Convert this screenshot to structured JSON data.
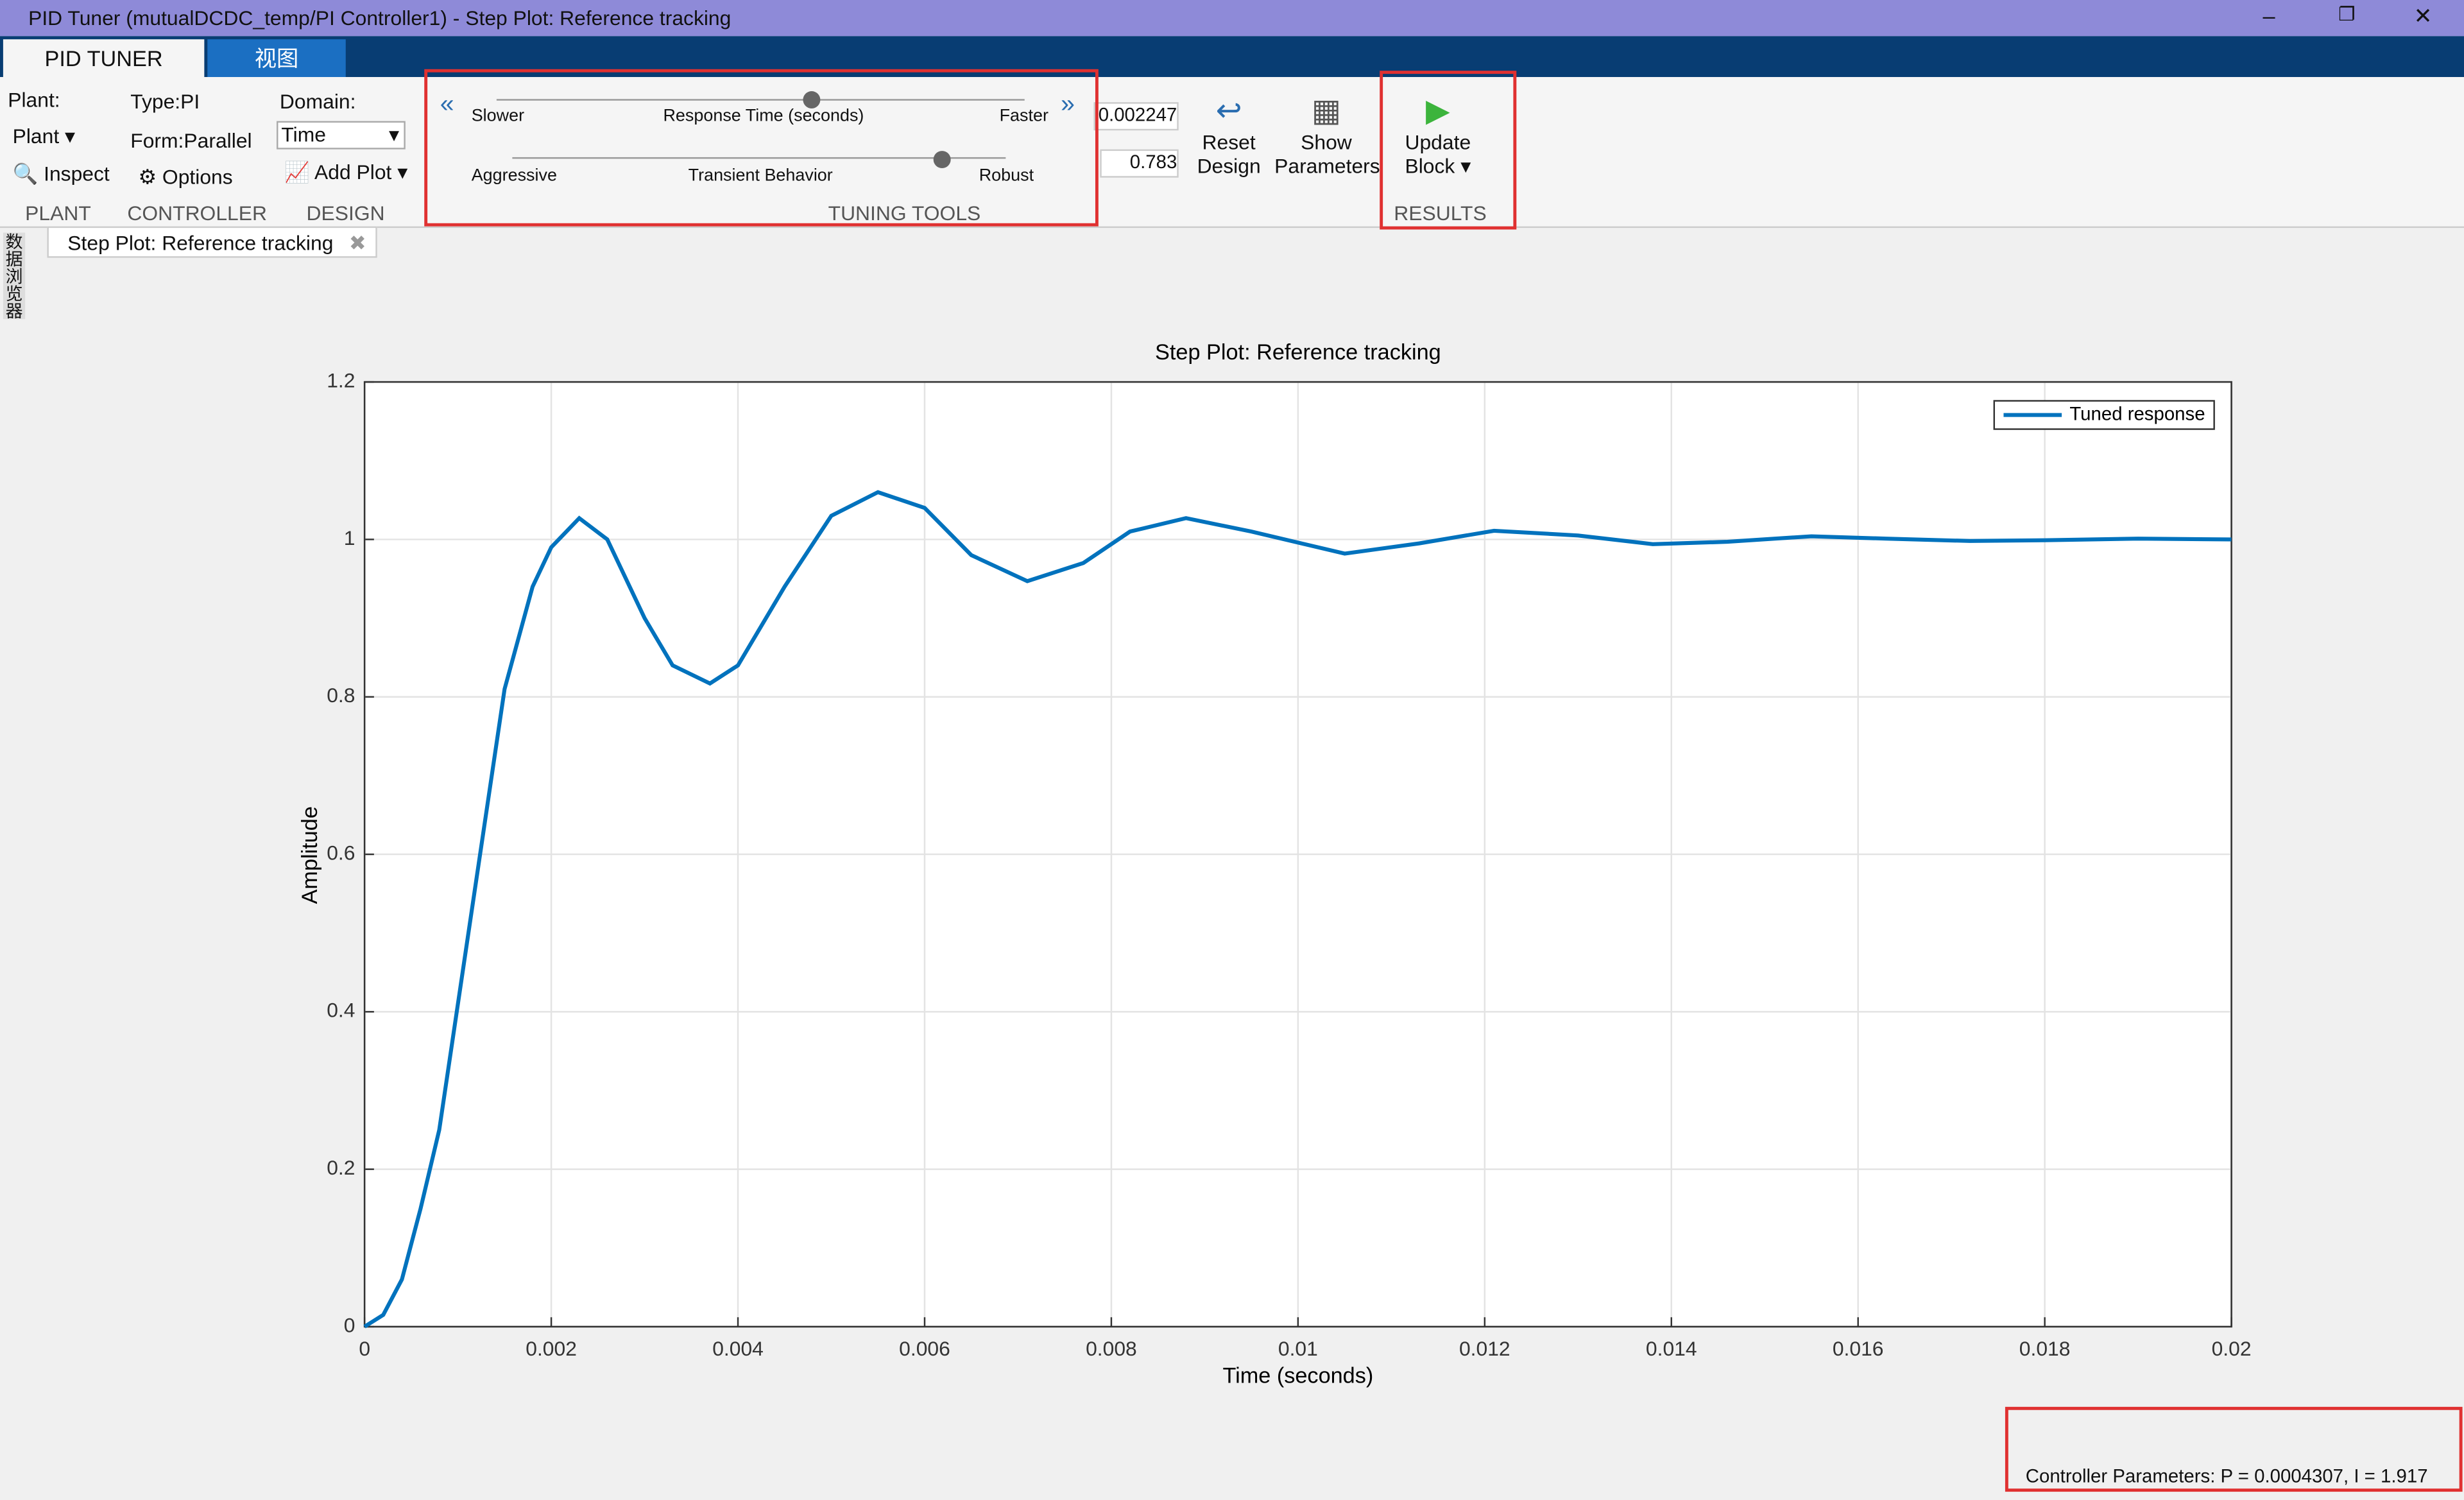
{
  "window": {
    "title": "PID Tuner (mutualDCDC_temp/PI Controller1) - Step Plot: Reference tracking"
  },
  "tabs": [
    "PID TUNER",
    "视图"
  ],
  "toolstrip": {
    "plant": {
      "label": "Plant:",
      "dropdown": "Plant",
      "inspect": "Inspect",
      "group": "PLANT"
    },
    "controller": {
      "type": "Type:",
      "type_value": "PI",
      "form": "Form:",
      "form_value": "Parallel",
      "options": "Options",
      "group": "CONTROLLER"
    },
    "design": {
      "domain": "Domain:",
      "domain_value": "Time",
      "add_plot": "Add Plot",
      "group": "DESIGN"
    },
    "tuning": {
      "slider1": {
        "left": "Slower",
        "center": "Response Time (seconds)",
        "right": "Faster",
        "value": "0.002247"
      },
      "slider2": {
        "left": "Aggressive",
        "center": "Transient Behavior",
        "right": "Robust",
        "value": "0.783"
      },
      "group": "TUNING TOOLS"
    },
    "reset": [
      "Reset",
      "Design"
    ],
    "show": [
      "Show",
      "Parameters"
    ],
    "results": {
      "update": [
        "Update",
        "Block"
      ],
      "group": "RESULTS"
    }
  },
  "side_panel": "数据浏览器",
  "document_tab": "Step Plot: Reference tracking",
  "chart_data": {
    "type": "line",
    "title": "Step Plot: Reference tracking",
    "xlabel": "Time (seconds)",
    "ylabel": "Amplitude",
    "x": [
      0,
      0.0002,
      0.0004,
      0.0006,
      0.0008,
      0.001,
      0.0012,
      0.0015,
      0.0018,
      0.002,
      0.0023,
      0.0026,
      0.003,
      0.0033,
      0.0037,
      0.004,
      0.0045,
      0.005,
      0.0055,
      0.006,
      0.0065,
      0.0071,
      0.0077,
      0.0082,
      0.0088,
      0.0095,
      0.0105,
      0.0113,
      0.0121,
      0.013,
      0.0138,
      0.0146,
      0.0155,
      0.0163,
      0.0172,
      0.018,
      0.019,
      0.02
    ],
    "series": [
      {
        "name": "Tuned response",
        "color": "#0072bd",
        "values": [
          0,
          0.015,
          0.06,
          0.15,
          0.25,
          0.41,
          0.57,
          0.81,
          0.94,
          0.99,
          1.027,
          1.0,
          0.9,
          0.84,
          0.817,
          0.84,
          0.94,
          1.03,
          1.06,
          1.04,
          0.98,
          0.947,
          0.97,
          1.01,
          1.027,
          1.01,
          0.982,
          0.995,
          1.011,
          1.005,
          0.994,
          0.997,
          1.004,
          1.001,
          0.998,
          0.999,
          1.001,
          1.0
        ]
      }
    ],
    "xlim": [
      0,
      0.02
    ],
    "ylim": [
      0,
      1.2
    ],
    "xticks": [
      0,
      0.002,
      0.004,
      0.006,
      0.008,
      0.01,
      0.012,
      0.014,
      0.016,
      0.018,
      0.02
    ],
    "yticks": [
      0,
      0.2,
      0.4,
      0.6,
      0.8,
      1,
      1.2
    ],
    "grid": true,
    "legend": "upper right"
  },
  "status": "Controller Parameters: P = 0.0004307, I = 1.917"
}
